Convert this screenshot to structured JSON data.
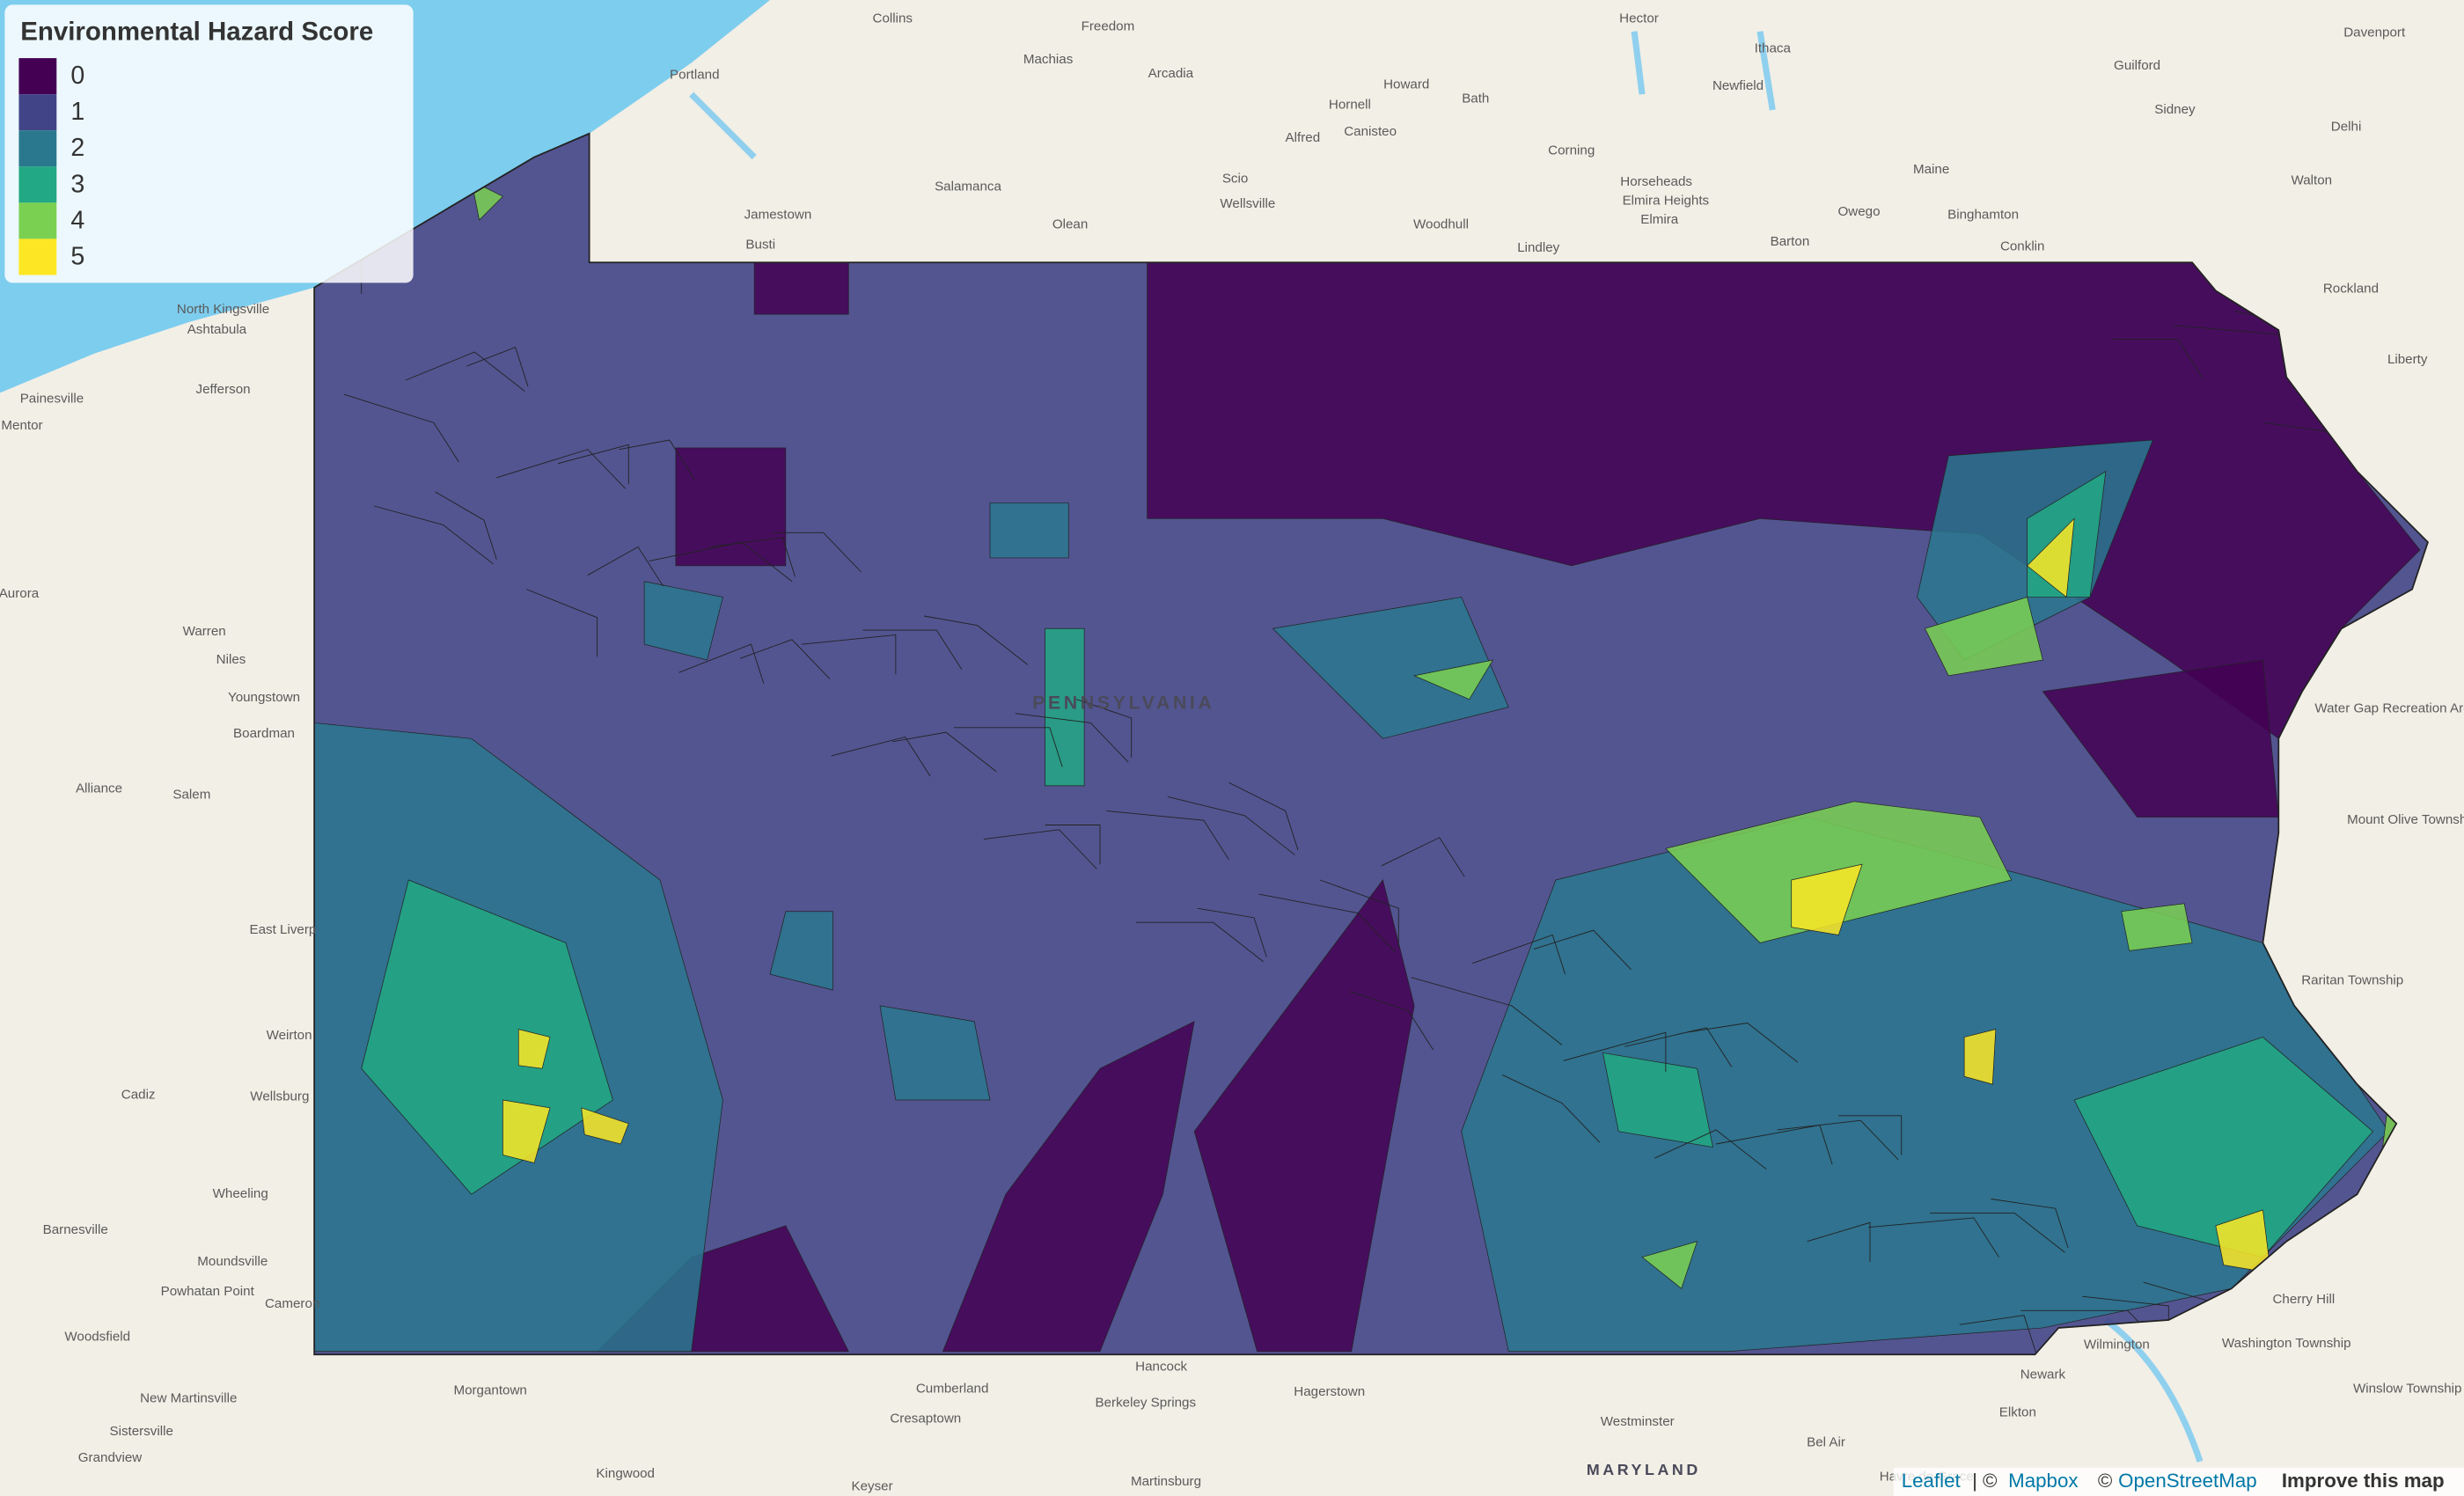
{
  "legend": {
    "title": "Environmental Hazard Score",
    "items": [
      {
        "label": 0,
        "color": "#440154"
      },
      {
        "label": 1,
        "color": "#414487"
      },
      {
        "label": 2,
        "color": "#2a788e"
      },
      {
        "label": 3,
        "color": "#22a884"
      },
      {
        "label": 4,
        "color": "#7ad151"
      },
      {
        "label": 5,
        "color": "#fde725"
      }
    ]
  },
  "map": {
    "state_label": "PENNSYLVANIA",
    "places": [
      "Collins",
      "Freedom",
      "Hector",
      "Ithaca",
      "Davenport",
      "Portland",
      "Machias",
      "Arcadia",
      "Guilford",
      "Howard",
      "Bath",
      "Hornell",
      "Newfield",
      "Sidney",
      "Alfred",
      "Canisteo",
      "Delhi",
      "Salamanca",
      "Scio",
      "Corning",
      "Horseheads",
      "Maine",
      "Walton",
      "Jamestown",
      "Wellsville",
      "Elmira Heights",
      "Elmira",
      "Binghamton",
      "Owego",
      "Olean",
      "Woodhull",
      "Busti",
      "Lindley",
      "Barton",
      "Conklin",
      "North Kingsville",
      "Ashtabula",
      "Jefferson",
      "Painesville",
      "Mentor",
      "Rockland",
      "Liberty",
      "Aurora",
      "Warren",
      "Niles",
      "Youngstown",
      "Boardman",
      "Alliance",
      "Salem",
      "East Liverp",
      "Weirton",
      "Cadiz",
      "Wellsburg",
      "Wheeling",
      "Barnesville",
      "Moundsville",
      "Powhatan Point",
      "Cameron",
      "Woodsfield",
      "New Martinsville",
      "Sistersville",
      "Grandview",
      "Morgantown",
      "Kingwood",
      "Cumberland",
      "Hancock",
      "Berkeley Springs",
      "Cresaptown",
      "Hagerstown",
      "Martinsburg",
      "Keyser",
      "Westminster",
      "Bel Air",
      "Havre de Grace",
      "Elkton",
      "Newark",
      "Wilmington",
      "Cherry Hill",
      "Washington Township",
      "Winslow Township",
      "Raritan Township",
      "Mount Olive Township",
      "Water Gap Recreation Area"
    ],
    "region_label": "MARYLAND"
  },
  "attribution": [
    "Leaflet",
    "| ©",
    "Mapbox",
    "©",
    "OpenStreetMap",
    "Improve this map"
  ]
}
